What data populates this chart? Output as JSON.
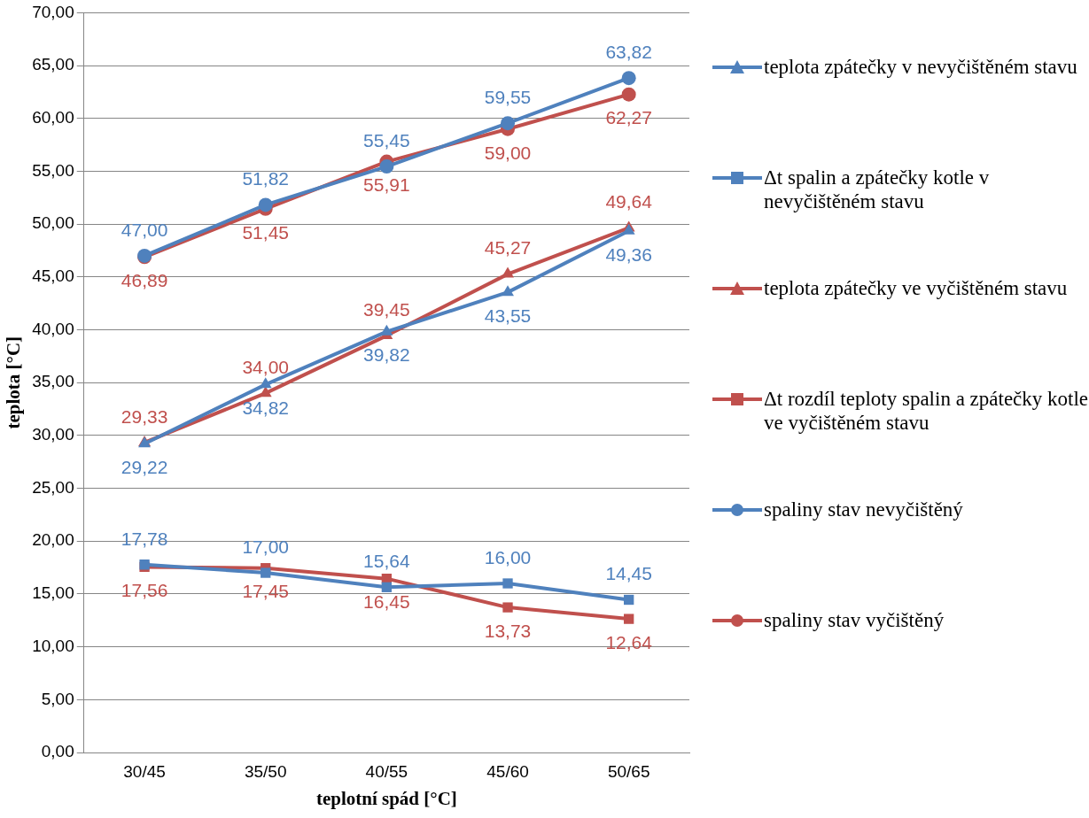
{
  "chart_data": {
    "type": "line",
    "xlabel": "teplotní spád [°C]",
    "ylabel": "teplota [°C]",
    "categories": [
      "30/45",
      "35/50",
      "40/55",
      "45/60",
      "50/65"
    ],
    "series": [
      {
        "name": "teplota zpátečky v nevyčištěném stavu",
        "color": "#4f81bd",
        "marker": "triangle",
        "values": [
          29.22,
          34.82,
          39.82,
          43.55,
          49.36
        ],
        "value_labels": [
          "29,22",
          "34,82",
          "39,82",
          "43,55",
          "49,36"
        ]
      },
      {
        "name": "Δt spalin a zpátečky kotle v nevyčištěném stavu",
        "color": "#4f81bd",
        "marker": "square",
        "values": [
          17.78,
          17.0,
          15.64,
          16.0,
          14.45
        ],
        "value_labels": [
          "17,78",
          "17,00",
          "15,64",
          "16,00",
          "14,45"
        ]
      },
      {
        "name": "teplota zpátečky ve vyčištěném stavu",
        "color": "#c0504d",
        "marker": "triangle",
        "values": [
          29.33,
          34.0,
          39.45,
          45.27,
          49.64
        ],
        "value_labels": [
          "29,33",
          "34,00",
          "39,45",
          "45,27",
          "49,64"
        ]
      },
      {
        "name": "Δt rozdíl teploty spalin a zpátečky kotle ve vyčištěném stavu",
        "color": "#c0504d",
        "marker": "square",
        "values": [
          17.56,
          17.45,
          16.45,
          13.73,
          12.64
        ],
        "value_labels": [
          "17,56",
          "17,45",
          "16,45",
          "13,73",
          "12,64"
        ]
      },
      {
        "name": "spaliny stav nevyčištěný",
        "color": "#4f81bd",
        "marker": "circle",
        "values": [
          47.0,
          51.82,
          55.45,
          59.55,
          63.82
        ],
        "value_labels": [
          "47,00",
          "51,82",
          "55,45",
          "59,55",
          "63,82"
        ]
      },
      {
        "name": "spaliny stav vyčištěný",
        "color": "#c0504d",
        "marker": "circle",
        "values": [
          46.89,
          51.45,
          55.91,
          59.0,
          62.27
        ],
        "value_labels": [
          "46,89",
          "51,45",
          "55,91",
          "59,00",
          "62,27"
        ]
      }
    ],
    "ylim": [
      0,
      70
    ],
    "yticks": [
      {
        "value": 0,
        "label": "0,00"
      },
      {
        "value": 5,
        "label": "5,00"
      },
      {
        "value": 10,
        "label": "10,00"
      },
      {
        "value": 15,
        "label": "15,00"
      },
      {
        "value": 20,
        "label": "20,00"
      },
      {
        "value": 25,
        "label": "25,00"
      },
      {
        "value": 30,
        "label": "30,00"
      },
      {
        "value": 35,
        "label": "35,00"
      },
      {
        "value": 40,
        "label": "40,00"
      },
      {
        "value": 45,
        "label": "45,00"
      },
      {
        "value": 50,
        "label": "50,00"
      },
      {
        "value": 55,
        "label": "55,00"
      },
      {
        "value": 60,
        "label": "60,00"
      },
      {
        "value": 65,
        "label": "65,00"
      },
      {
        "value": 70,
        "label": "70,00"
      }
    ],
    "grid": "y",
    "legend": "right",
    "line_style": "solid"
  }
}
